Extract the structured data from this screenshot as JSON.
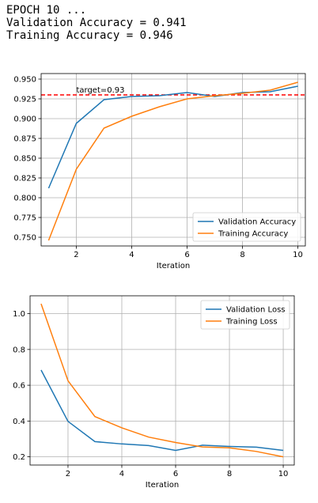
{
  "log": {
    "line1": "EPOCH 10 ...",
    "line2": "Validation Accuracy = 0.941",
    "line3": "Training Accuracy = 0.946"
  },
  "chart_data": [
    {
      "type": "line",
      "xlabel": "Iteration",
      "ylabel": "",
      "xlim": [
        0.73,
        10.27
      ],
      "ylim": [
        0.739,
        0.957
      ],
      "x_ticks": [
        2,
        4,
        6,
        8,
        10
      ],
      "y_ticks": [
        0.75,
        0.775,
        0.8,
        0.825,
        0.85,
        0.875,
        0.9,
        0.925,
        0.95
      ],
      "grid": true,
      "legend": "bottom-right",
      "x": [
        1,
        2,
        3,
        4,
        5,
        6,
        7,
        8,
        9,
        10
      ],
      "series": [
        {
          "name": "Validation Accuracy",
          "color": "#1f77b4",
          "values": [
            0.812,
            0.894,
            0.924,
            0.928,
            0.929,
            0.933,
            0.928,
            0.933,
            0.934,
            0.941
          ]
        },
        {
          "name": "Training Accuracy",
          "color": "#ff7f0e",
          "values": [
            0.746,
            0.836,
            0.888,
            0.903,
            0.915,
            0.925,
            0.929,
            0.932,
            0.936,
            0.946
          ]
        }
      ],
      "reference_line": {
        "y": 0.93,
        "label": "target=0.93",
        "color": "#ff0000"
      }
    },
    {
      "type": "line",
      "xlabel": "Iteration",
      "ylabel": "",
      "xlim": [
        0.59,
        10.41
      ],
      "ylim": [
        0.154,
        1.1
      ],
      "x_ticks": [
        2,
        4,
        6,
        8,
        10
      ],
      "y_ticks": [
        0.2,
        0.4,
        0.6,
        0.8,
        1.0
      ],
      "grid": true,
      "legend": "top-right",
      "x": [
        1,
        2,
        3,
        4,
        5,
        6,
        7,
        8,
        9,
        10
      ],
      "series": [
        {
          "name": "Validation Loss",
          "color": "#1f77b4",
          "values": [
            0.685,
            0.398,
            0.285,
            0.272,
            0.263,
            0.236,
            0.265,
            0.258,
            0.254,
            0.236
          ]
        },
        {
          "name": "Training Loss",
          "color": "#ff7f0e",
          "values": [
            1.055,
            0.625,
            0.425,
            0.362,
            0.31,
            0.28,
            0.255,
            0.25,
            0.23,
            0.2
          ]
        }
      ]
    }
  ]
}
